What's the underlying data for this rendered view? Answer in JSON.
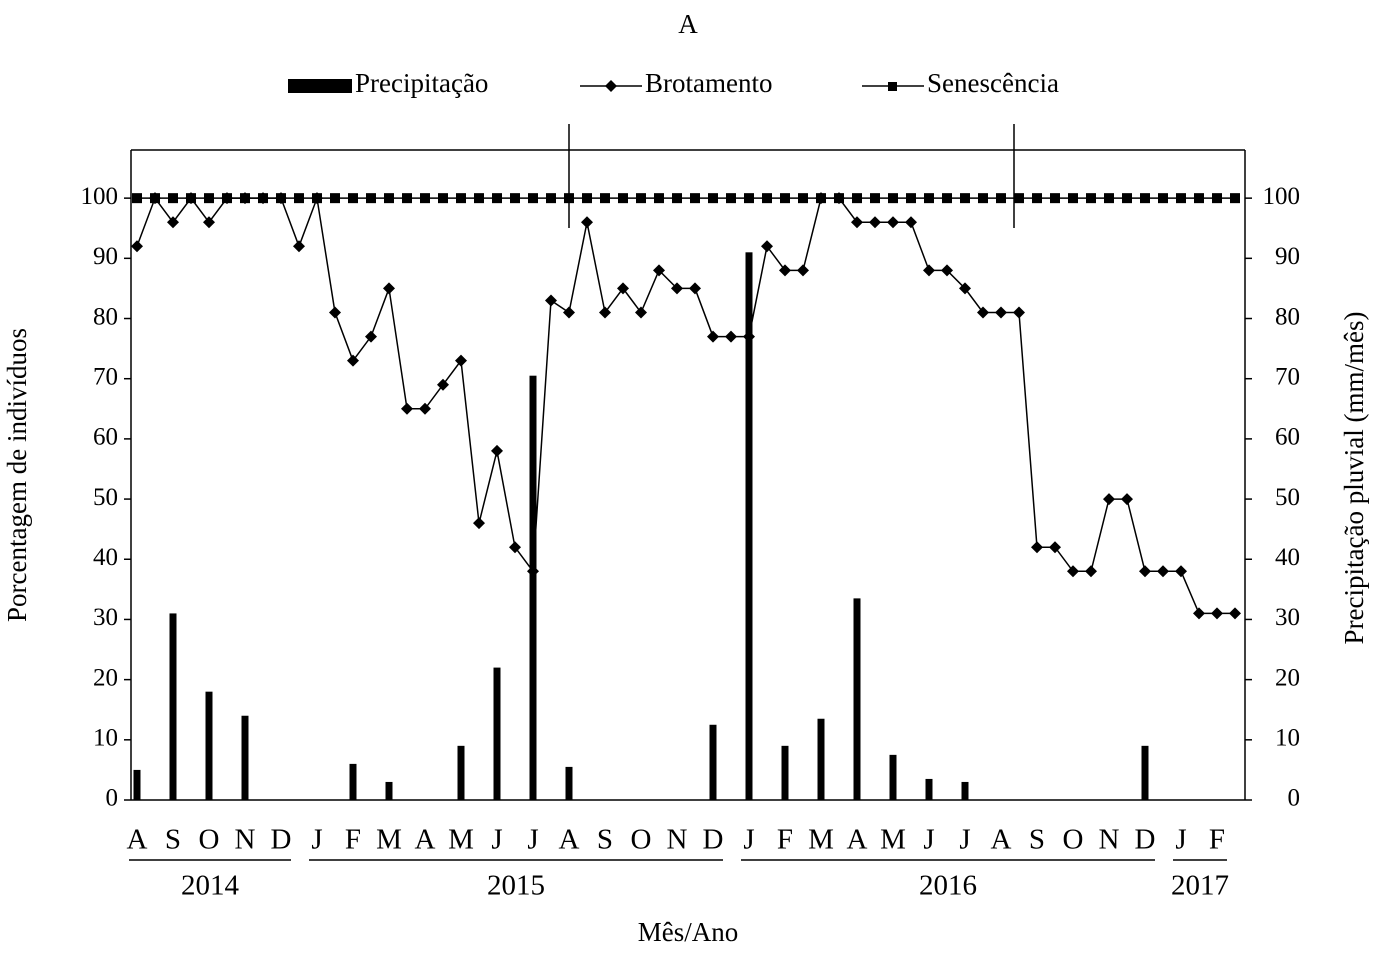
{
  "chart_data": {
    "type": "line",
    "title": "A",
    "x_label": "Mês/Ano",
    "y_label": "Porcentagem  de indivíduos",
    "y2_label": "Precipitação  pluvial  (mm/mês)",
    "categories": [
      "A",
      null,
      "S",
      null,
      "O",
      null,
      "N",
      null,
      "D",
      null,
      "J",
      null,
      "F",
      null,
      "M",
      null,
      "A",
      null,
      "M",
      null,
      "J",
      null,
      "J",
      null,
      "A",
      null,
      "S",
      null,
      "O",
      null,
      "N",
      null,
      "D",
      null,
      "J",
      null,
      "F",
      null,
      "M",
      null,
      "A",
      null,
      "M",
      null,
      "J",
      null,
      "J",
      null,
      "A",
      null,
      "S",
      null,
      "O",
      null,
      "N",
      null,
      "D",
      null,
      "J",
      null,
      "F",
      null
    ],
    "years": [
      "2014",
      "2015",
      "2016",
      "2017"
    ],
    "ylim": [
      0,
      108
    ],
    "yticks": [
      0,
      10,
      20,
      30,
      40,
      50,
      60,
      70,
      80,
      90,
      100
    ],
    "y2lim": [
      0,
      108
    ],
    "y2ticks": [
      0,
      10,
      20,
      30,
      40,
      50,
      60,
      70,
      80,
      90,
      100
    ],
    "series": [
      {
        "name": "Precipitação",
        "type": "bar",
        "axis": "y2",
        "color": "#000000",
        "values": [
          5,
          null,
          31,
          null,
          18,
          null,
          14,
          null,
          null,
          null,
          null,
          null,
          6,
          null,
          3,
          null,
          null,
          null,
          9,
          null,
          22,
          null,
          70.5,
          null,
          5.5,
          null,
          null,
          null,
          null,
          null,
          null,
          null,
          12.5,
          null,
          91,
          null,
          9,
          null,
          13.5,
          null,
          33.5,
          null,
          7.5,
          null,
          3.5,
          null,
          3,
          null,
          null,
          null,
          null,
          null,
          null,
          null,
          null,
          null,
          9,
          null,
          null,
          null,
          null,
          null
        ]
      },
      {
        "name": "Brotamento",
        "type": "line",
        "marker": "diamond",
        "color": "#000000",
        "values": [
          92,
          100,
          96,
          100,
          96,
          100,
          100,
          100,
          100,
          92,
          100,
          81,
          73,
          77,
          85,
          65,
          65,
          69,
          73,
          46,
          58,
          42,
          38,
          83,
          81,
          96,
          81,
          85,
          81,
          88,
          85,
          85,
          77,
          77,
          77,
          92,
          88,
          88,
          100,
          100,
          96,
          96,
          96,
          96,
          88,
          88,
          85,
          81,
          81,
          81,
          42,
          42,
          38,
          38,
          50,
          50,
          38,
          38,
          38,
          31,
          31,
          31
        ]
      },
      {
        "name": "Senescência",
        "type": "line",
        "marker": "square",
        "color": "#000000",
        "values": [
          100,
          100,
          100,
          100,
          100,
          100,
          100,
          100,
          100,
          100,
          100,
          100,
          100,
          100,
          100,
          100,
          100,
          100,
          100,
          100,
          100,
          100,
          100,
          100,
          100,
          100,
          100,
          100,
          100,
          100,
          100,
          100,
          100,
          100,
          100,
          100,
          100,
          100,
          100,
          100,
          100,
          100,
          100,
          100,
          100,
          100,
          100,
          100,
          100,
          100,
          100,
          100,
          100,
          100,
          100,
          100,
          100,
          100,
          100,
          100,
          100,
          100
        ]
      }
    ]
  }
}
